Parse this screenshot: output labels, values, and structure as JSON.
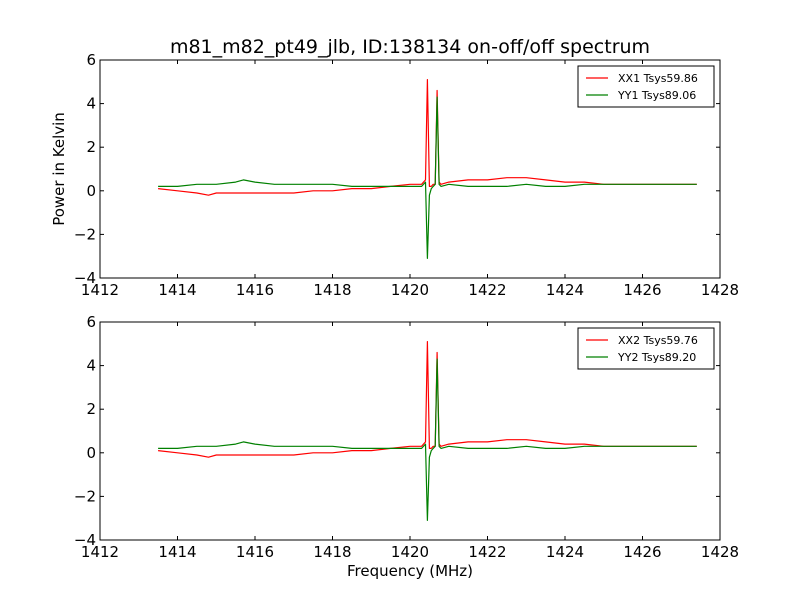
{
  "chart_data": [
    {
      "type": "line",
      "title": "m81_m82_pt49_jlb, ID:138134 on-off/off spectrum",
      "xlabel": "",
      "ylabel": "Power in Kelvin",
      "xlim": [
        1412,
        1428
      ],
      "ylim": [
        -4,
        6
      ],
      "xticks": [
        "1412",
        "1414",
        "1416",
        "1418",
        "1420",
        "1422",
        "1424",
        "1426",
        "1428"
      ],
      "yticks": [
        "6",
        "4",
        "2",
        "0",
        "−2",
        "−4"
      ],
      "legend_position": "top-right",
      "grid": false,
      "series": [
        {
          "name": "XX1 Tsys59.86",
          "color": "#ff0000",
          "x": [
            1413.5,
            1414.0,
            1414.5,
            1414.8,
            1415.0,
            1415.5,
            1416.0,
            1416.5,
            1417.0,
            1417.5,
            1418.0,
            1418.5,
            1419.0,
            1419.5,
            1420.0,
            1420.3,
            1420.4,
            1420.45,
            1420.5,
            1420.55,
            1420.6,
            1420.65,
            1420.7,
            1420.75,
            1420.8,
            1421.0,
            1421.5,
            1422.0,
            1422.5,
            1423.0,
            1423.5,
            1424.0,
            1424.5,
            1425.0,
            1425.5,
            1426.0,
            1426.5,
            1427.0,
            1427.4
          ],
          "y": [
            0.1,
            0.0,
            -0.1,
            -0.2,
            -0.1,
            -0.1,
            -0.1,
            -0.1,
            -0.1,
            0.0,
            0.0,
            0.1,
            0.1,
            0.2,
            0.3,
            0.3,
            0.5,
            5.1,
            0.2,
            0.2,
            0.3,
            0.3,
            4.6,
            0.4,
            0.3,
            0.4,
            0.5,
            0.5,
            0.6,
            0.6,
            0.5,
            0.4,
            0.4,
            0.3,
            0.3,
            0.3,
            0.3,
            0.3,
            0.3
          ]
        },
        {
          "name": "YY1 Tsys89.06",
          "color": "#008000",
          "x": [
            1413.5,
            1414.0,
            1414.5,
            1415.0,
            1415.5,
            1415.7,
            1416.0,
            1416.5,
            1417.0,
            1417.5,
            1418.0,
            1418.5,
            1419.0,
            1419.5,
            1420.0,
            1420.3,
            1420.4,
            1420.45,
            1420.5,
            1420.55,
            1420.6,
            1420.65,
            1420.7,
            1420.75,
            1420.8,
            1421.0,
            1421.5,
            1422.0,
            1422.5,
            1423.0,
            1423.5,
            1424.0,
            1424.5,
            1425.0,
            1425.5,
            1426.0,
            1426.5,
            1427.0,
            1427.4
          ],
          "y": [
            0.2,
            0.2,
            0.3,
            0.3,
            0.4,
            0.5,
            0.4,
            0.3,
            0.3,
            0.3,
            0.3,
            0.2,
            0.2,
            0.2,
            0.2,
            0.2,
            0.4,
            -3.1,
            -0.2,
            0.1,
            0.2,
            0.3,
            4.3,
            0.3,
            0.2,
            0.3,
            0.2,
            0.2,
            0.2,
            0.3,
            0.2,
            0.2,
            0.3,
            0.3,
            0.3,
            0.3,
            0.3,
            0.3,
            0.3
          ]
        }
      ]
    },
    {
      "type": "line",
      "title": "",
      "xlabel": "Frequency (MHz)",
      "ylabel": "",
      "xlim": [
        1412,
        1428
      ],
      "ylim": [
        -4,
        6
      ],
      "xticks": [
        "1412",
        "1414",
        "1416",
        "1418",
        "1420",
        "1422",
        "1424",
        "1426",
        "1428"
      ],
      "yticks": [
        "6",
        "4",
        "2",
        "0",
        "−2",
        "−4"
      ],
      "legend_position": "top-right",
      "grid": false,
      "series": [
        {
          "name": "XX2 Tsys59.76",
          "color": "#ff0000",
          "x": [
            1413.5,
            1414.0,
            1414.5,
            1414.8,
            1415.0,
            1415.5,
            1416.0,
            1416.5,
            1417.0,
            1417.5,
            1418.0,
            1418.5,
            1419.0,
            1419.5,
            1420.0,
            1420.3,
            1420.4,
            1420.45,
            1420.5,
            1420.55,
            1420.6,
            1420.65,
            1420.7,
            1420.75,
            1420.8,
            1421.0,
            1421.5,
            1422.0,
            1422.5,
            1423.0,
            1423.5,
            1424.0,
            1424.5,
            1425.0,
            1425.5,
            1426.0,
            1426.5,
            1427.0,
            1427.4
          ],
          "y": [
            0.1,
            0.0,
            -0.1,
            -0.2,
            -0.1,
            -0.1,
            -0.1,
            -0.1,
            -0.1,
            0.0,
            0.0,
            0.1,
            0.1,
            0.2,
            0.3,
            0.3,
            0.5,
            5.1,
            0.2,
            0.2,
            0.3,
            0.3,
            4.6,
            0.4,
            0.3,
            0.4,
            0.5,
            0.5,
            0.6,
            0.6,
            0.5,
            0.4,
            0.4,
            0.3,
            0.3,
            0.3,
            0.3,
            0.3,
            0.3
          ]
        },
        {
          "name": "YY2 Tsys89.20",
          "color": "#008000",
          "x": [
            1413.5,
            1414.0,
            1414.5,
            1415.0,
            1415.5,
            1415.7,
            1416.0,
            1416.5,
            1417.0,
            1417.5,
            1418.0,
            1418.5,
            1419.0,
            1419.5,
            1420.0,
            1420.3,
            1420.4,
            1420.45,
            1420.5,
            1420.55,
            1420.6,
            1420.65,
            1420.7,
            1420.75,
            1420.8,
            1421.0,
            1421.5,
            1422.0,
            1422.5,
            1423.0,
            1423.5,
            1424.0,
            1424.5,
            1425.0,
            1425.5,
            1426.0,
            1426.5,
            1427.0,
            1427.4
          ],
          "y": [
            0.2,
            0.2,
            0.3,
            0.3,
            0.4,
            0.5,
            0.4,
            0.3,
            0.3,
            0.3,
            0.3,
            0.2,
            0.2,
            0.2,
            0.2,
            0.2,
            0.4,
            -3.1,
            -0.2,
            0.1,
            0.2,
            0.3,
            4.3,
            0.3,
            0.2,
            0.3,
            0.2,
            0.2,
            0.2,
            0.3,
            0.2,
            0.2,
            0.3,
            0.3,
            0.3,
            0.3,
            0.3,
            0.3,
            0.3
          ]
        }
      ]
    }
  ]
}
